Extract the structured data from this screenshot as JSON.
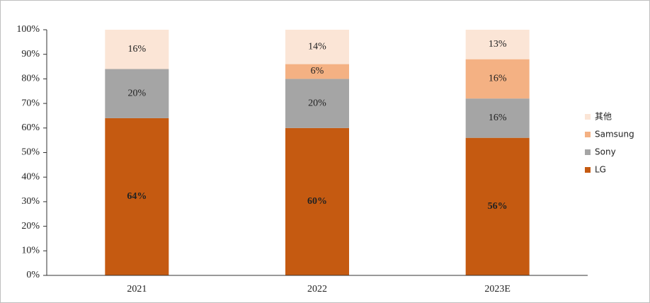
{
  "chart_data": {
    "type": "stacked_bar",
    "categories": [
      "2021",
      "2022",
      "2023E"
    ],
    "series": [
      {
        "name": "LG",
        "color": "#c55a11",
        "values": [
          64,
          60,
          56
        ],
        "value_labels": [
          "64%",
          "60%",
          "56%"
        ]
      },
      {
        "name": "Sony",
        "color": "#a5a5a5",
        "values": [
          20,
          20,
          16
        ],
        "value_labels": [
          "20%",
          "20%",
          "16%"
        ]
      },
      {
        "name": "Samsung",
        "color": "#f4b183",
        "values": [
          null,
          6,
          16
        ],
        "value_labels": [
          null,
          "6%",
          "16%"
        ]
      },
      {
        "name": "其他",
        "color": "#fbe5d6",
        "values": [
          16,
          14,
          13
        ],
        "value_labels": [
          "16%",
          "14%",
          "13%"
        ]
      }
    ],
    "ylim": [
      0,
      100
    ],
    "yticks": [
      {
        "value": 0,
        "label": "0%"
      },
      {
        "value": 10,
        "label": "10%"
      },
      {
        "value": 20,
        "label": "20%"
      },
      {
        "value": 30,
        "label": "30%"
      },
      {
        "value": 40,
        "label": "40%"
      },
      {
        "value": 50,
        "label": "50%"
      },
      {
        "value": 60,
        "label": "60%"
      },
      {
        "value": 70,
        "label": "70%"
      },
      {
        "value": 80,
        "label": "80%"
      },
      {
        "value": 90,
        "label": "90%"
      },
      {
        "value": 100,
        "label": "100%"
      }
    ],
    "legend": "right",
    "grid": false
  }
}
